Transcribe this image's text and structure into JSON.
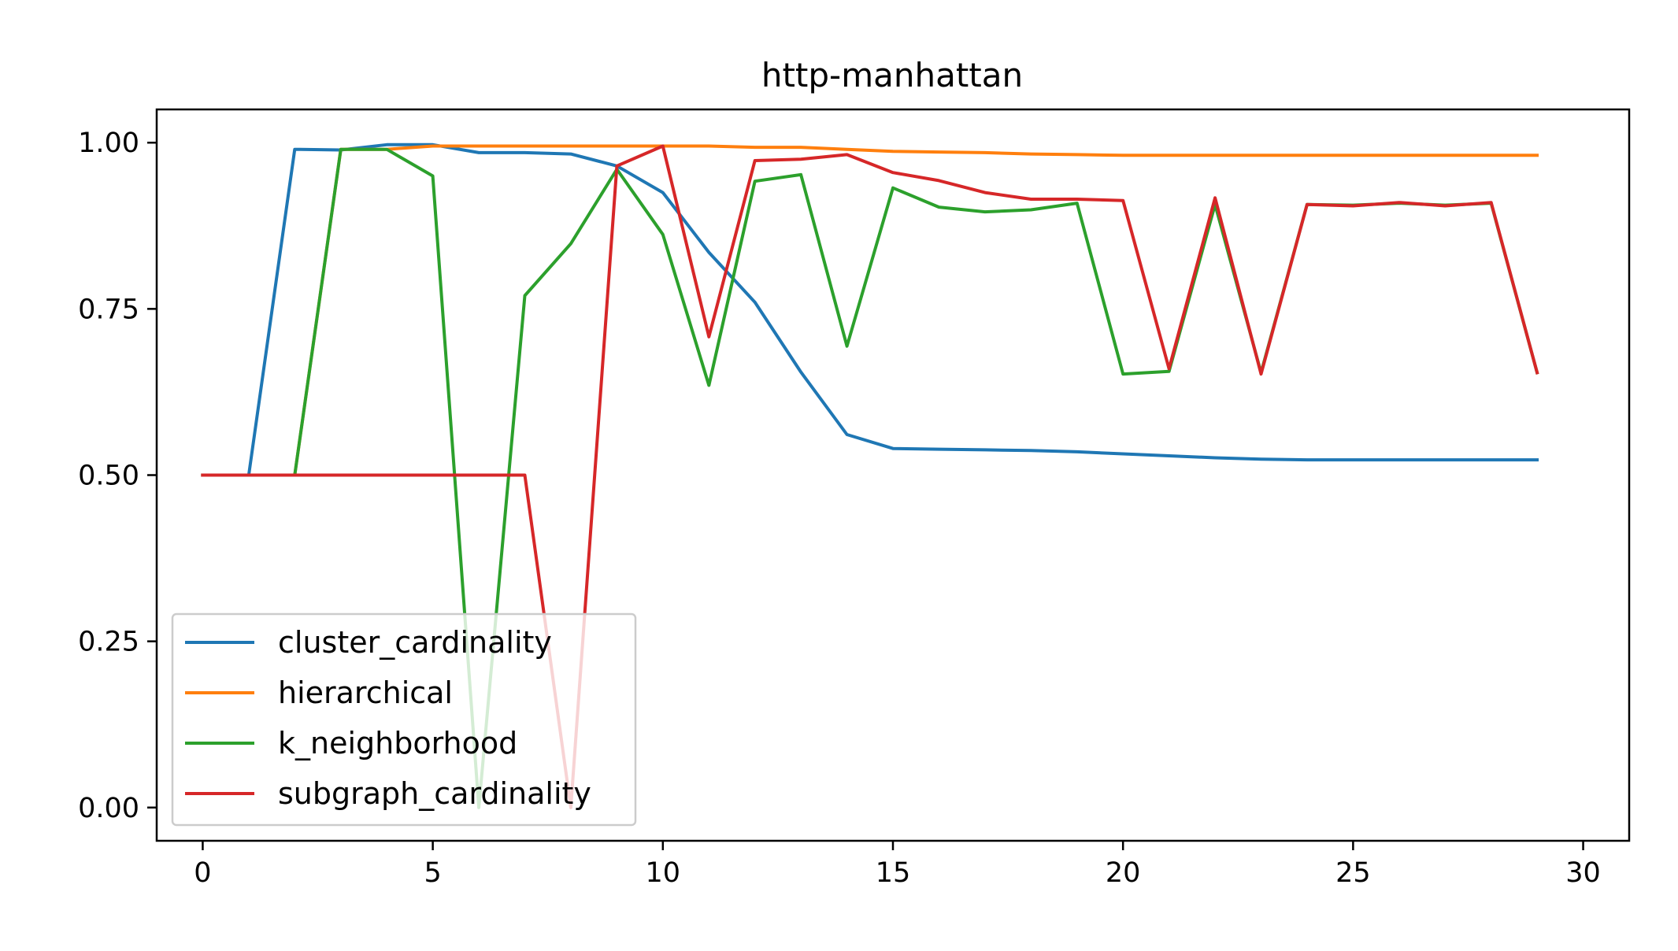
{
  "chart_data": {
    "type": "line",
    "title": "http-manhattan",
    "xlabel": "",
    "ylabel": "",
    "xlim": [
      -1,
      31
    ],
    "ylim": [
      -0.05,
      1.05
    ],
    "xticks": [
      0,
      5,
      10,
      15,
      20,
      25,
      30
    ],
    "yticks": [
      0.0,
      0.25,
      0.5,
      0.75,
      1.0
    ],
    "xtick_labels": [
      "0",
      "5",
      "10",
      "15",
      "20",
      "25",
      "30"
    ],
    "ytick_labels": [
      "0.00",
      "0.25",
      "0.50",
      "0.75",
      "1.00"
    ],
    "grid": false,
    "legend_position": "lower-left",
    "x": [
      0,
      1,
      2,
      3,
      4,
      5,
      6,
      7,
      8,
      9,
      10,
      11,
      12,
      13,
      14,
      15,
      16,
      17,
      18,
      19,
      20,
      21,
      22,
      23,
      24,
      25,
      26,
      27,
      28,
      29
    ],
    "series": [
      {
        "name": "cluster_cardinality",
        "color": "#1f77b4",
        "values": [
          0.5,
          0.5,
          0.99,
          0.989,
          0.997,
          0.997,
          0.985,
          0.985,
          0.983,
          0.965,
          0.925,
          0.835,
          0.76,
          0.655,
          0.561,
          0.54,
          0.539,
          0.538,
          0.537,
          0.535,
          0.532,
          0.529,
          0.526,
          0.524,
          0.523,
          0.523,
          0.523,
          0.523,
          0.523,
          0.523
        ]
      },
      {
        "name": "hierarchical",
        "color": "#ff7f0e",
        "values": [
          0.5,
          0.5,
          0.5,
          0.99,
          0.99,
          0.995,
          0.995,
          0.995,
          0.995,
          0.995,
          0.995,
          0.995,
          0.993,
          0.993,
          0.99,
          0.987,
          0.986,
          0.985,
          0.983,
          0.982,
          0.981,
          0.981,
          0.981,
          0.981,
          0.981,
          0.981,
          0.981,
          0.981,
          0.981,
          0.981
        ]
      },
      {
        "name": "k_neighborhood",
        "color": "#2ca02c",
        "values": [
          0.5,
          0.5,
          0.5,
          0.99,
          0.99,
          0.95,
          0.0,
          0.77,
          0.848,
          0.96,
          0.862,
          0.635,
          0.942,
          0.952,
          0.694,
          0.932,
          0.903,
          0.896,
          0.899,
          0.909,
          0.652,
          0.656,
          0.907,
          0.654,
          0.907,
          0.906,
          0.909,
          0.906,
          0.909,
          0.654
        ]
      },
      {
        "name": "subgraph_cardinality",
        "color": "#d62728",
        "values": [
          0.5,
          0.5,
          0.5,
          0.5,
          0.5,
          0.5,
          0.5,
          0.5,
          0.0,
          0.965,
          0.995,
          0.708,
          0.973,
          0.975,
          0.982,
          0.955,
          0.943,
          0.925,
          0.915,
          0.915,
          0.913,
          0.66,
          0.917,
          0.652,
          0.907,
          0.905,
          0.91,
          0.905,
          0.91,
          0.654
        ]
      }
    ]
  }
}
